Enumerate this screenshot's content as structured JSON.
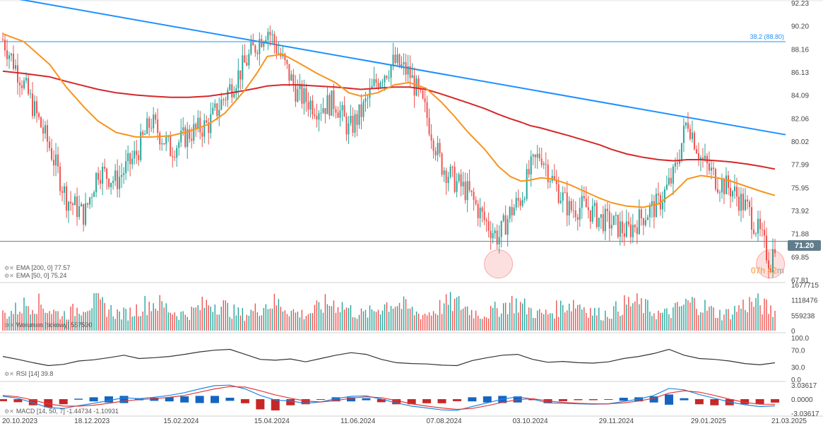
{
  "chart_data": {
    "type": "candlestick",
    "date_axis": [
      "20.10.2023",
      "18.12.2023",
      "15.02.2024",
      "15.04.2024",
      "11.06.2024",
      "07.08.2024",
      "03.10.2024",
      "29.11.2024",
      "29.01.2025",
      "21.03.2025"
    ],
    "price_axis": [
      "92.23",
      "90.20",
      "88.16",
      "86.13",
      "84.09",
      "82.06",
      "80.02",
      "77.99",
      "75.95",
      "73.92",
      "71.88",
      "69.85",
      "67.81"
    ],
    "ylim": [
      67.81,
      92.23
    ],
    "last_price": "71.20",
    "fib_level_label": "38.2 (88.80)",
    "fib_level_value": 88.8,
    "countdown": {
      "hours": "07",
      "h_unit": "h",
      "minutes": "42",
      "m_unit": "m"
    },
    "series": [
      {
        "name": "Close",
        "points": [
          [
            "20.10.2023",
            89.0
          ],
          [
            "03.11.2023",
            85.0
          ],
          [
            "20.11.2023",
            79.5
          ],
          [
            "01.12.2023",
            75.0
          ],
          [
            "13.12.2023",
            73.5
          ],
          [
            "22.12.2023",
            77.5
          ],
          [
            "03.01.2024",
            76.5
          ],
          [
            "16.01.2024",
            78.8
          ],
          [
            "26.01.2024",
            81.8
          ],
          [
            "08.02.2024",
            79.3
          ],
          [
            "20.02.2024",
            80.7
          ],
          [
            "04.03.2024",
            81.5
          ],
          [
            "15.03.2024",
            84.0
          ],
          [
            "28.03.2024",
            86.8
          ],
          [
            "05.04.2024",
            88.6
          ],
          [
            "12.04.2024",
            90.0
          ],
          [
            "22.04.2024",
            87.2
          ],
          [
            "02.05.2024",
            84.2
          ],
          [
            "15.05.2024",
            83.0
          ],
          [
            "27.05.2024",
            83.5
          ],
          [
            "05.06.2024",
            81.0
          ],
          [
            "13.06.2024",
            82.5
          ],
          [
            "24.06.2024",
            85.5
          ],
          [
            "05.07.2024",
            87.0
          ],
          [
            "15.07.2024",
            86.0
          ],
          [
            "26.07.2024",
            82.5
          ],
          [
            "05.08.2024",
            78.0
          ],
          [
            "14.08.2024",
            76.5
          ],
          [
            "23.08.2024",
            75.5
          ],
          [
            "03.09.2024",
            73.0
          ],
          [
            "12.09.2024",
            71.5
          ],
          [
            "20.09.2024",
            73.8
          ],
          [
            "27.09.2024",
            75.0
          ],
          [
            "03.10.2024",
            77.5
          ],
          [
            "10.10.2024",
            79.0
          ],
          [
            "18.10.2024",
            76.5
          ],
          [
            "29.10.2024",
            74.0
          ],
          [
            "08.11.2024",
            74.3
          ],
          [
            "18.11.2024",
            73.2
          ],
          [
            "26.11.2024",
            72.8
          ],
          [
            "06.12.2024",
            72.0
          ],
          [
            "17.12.2024",
            73.5
          ],
          [
            "27.12.2024",
            74.5
          ],
          [
            "06.01.2025",
            77.0
          ],
          [
            "15.01.2025",
            82.0
          ],
          [
            "24.01.2025",
            78.5
          ],
          [
            "04.02.2025",
            76.5
          ],
          [
            "13.02.2025",
            75.8
          ],
          [
            "24.02.2025",
            74.0
          ],
          [
            "05.03.2025",
            71.5
          ],
          [
            "11.03.2025",
            69.2
          ],
          [
            "14.03.2025",
            71.2
          ]
        ]
      },
      {
        "name": "EMA [200, 0]",
        "legend": "EMA [200, 0] 77.57",
        "color": "#d62728",
        "points": [
          [
            "20.10.2023",
            86.2
          ],
          [
            "03.11.2023",
            86.0
          ],
          [
            "20.11.2023",
            85.7
          ],
          [
            "01.12.2023",
            85.3
          ],
          [
            "13.12.2023",
            84.9
          ],
          [
            "22.12.2023",
            84.6
          ],
          [
            "03.01.2024",
            84.3
          ],
          [
            "16.01.2024",
            84.1
          ],
          [
            "26.01.2024",
            84.0
          ],
          [
            "08.02.2024",
            83.9
          ],
          [
            "20.02.2024",
            83.9
          ],
          [
            "04.03.2024",
            84.0
          ],
          [
            "15.03.2024",
            84.2
          ],
          [
            "28.03.2024",
            84.5
          ],
          [
            "05.04.2024",
            84.7
          ],
          [
            "12.04.2024",
            84.9
          ],
          [
            "22.04.2024",
            85.0
          ],
          [
            "02.05.2024",
            85.0
          ],
          [
            "15.05.2024",
            84.9
          ],
          [
            "27.05.2024",
            84.8
          ],
          [
            "05.06.2024",
            84.7
          ],
          [
            "13.06.2024",
            84.6
          ],
          [
            "24.06.2024",
            84.7
          ],
          [
            "05.07.2024",
            84.8
          ],
          [
            "15.07.2024",
            84.8
          ],
          [
            "26.07.2024",
            84.6
          ],
          [
            "05.08.2024",
            84.2
          ],
          [
            "14.08.2024",
            83.8
          ],
          [
            "23.08.2024",
            83.4
          ],
          [
            "03.09.2024",
            82.9
          ],
          [
            "12.09.2024",
            82.4
          ],
          [
            "20.09.2024",
            82.0
          ],
          [
            "27.09.2024",
            81.7
          ],
          [
            "03.10.2024",
            81.4
          ],
          [
            "10.10.2024",
            81.2
          ],
          [
            "18.10.2024",
            80.9
          ],
          [
            "29.10.2024",
            80.5
          ],
          [
            "08.11.2024",
            80.1
          ],
          [
            "18.11.2024",
            79.7
          ],
          [
            "26.11.2024",
            79.3
          ],
          [
            "06.12.2024",
            78.9
          ],
          [
            "17.12.2024",
            78.6
          ],
          [
            "27.12.2024",
            78.4
          ],
          [
            "06.01.2025",
            78.3
          ],
          [
            "15.01.2025",
            78.4
          ],
          [
            "24.01.2025",
            78.4
          ],
          [
            "04.02.2025",
            78.3
          ],
          [
            "13.02.2025",
            78.2
          ],
          [
            "24.02.2025",
            78.0
          ],
          [
            "05.03.2025",
            77.8
          ],
          [
            "14.03.2025",
            77.57
          ]
        ]
      },
      {
        "name": "EMA [50, 0]",
        "legend": "EMA [50, 0] 75.24",
        "color": "#f7941d",
        "points": [
          [
            "20.10.2023",
            89.5
          ],
          [
            "03.11.2023",
            88.8
          ],
          [
            "20.11.2023",
            86.8
          ],
          [
            "01.12.2023",
            84.8
          ],
          [
            "13.12.2023",
            83.0
          ],
          [
            "22.12.2023",
            81.8
          ],
          [
            "03.01.2024",
            80.8
          ],
          [
            "16.01.2024",
            80.4
          ],
          [
            "26.01.2024",
            80.4
          ],
          [
            "08.02.2024",
            80.5
          ],
          [
            "20.02.2024",
            80.9
          ],
          [
            "04.03.2024",
            81.5
          ],
          [
            "15.03.2024",
            82.5
          ],
          [
            "28.03.2024",
            84.5
          ],
          [
            "05.04.2024",
            86.0
          ],
          [
            "12.04.2024",
            87.5
          ],
          [
            "22.04.2024",
            87.7
          ],
          [
            "02.05.2024",
            87.0
          ],
          [
            "15.05.2024",
            86.0
          ],
          [
            "27.05.2024",
            85.2
          ],
          [
            "05.06.2024",
            84.3
          ],
          [
            "13.06.2024",
            84.0
          ],
          [
            "24.06.2024",
            84.3
          ],
          [
            "05.07.2024",
            85.0
          ],
          [
            "15.07.2024",
            85.2
          ],
          [
            "26.07.2024",
            84.7
          ],
          [
            "05.08.2024",
            83.5
          ],
          [
            "14.08.2024",
            82.2
          ],
          [
            "23.08.2024",
            80.8
          ],
          [
            "03.09.2024",
            79.3
          ],
          [
            "12.09.2024",
            77.8
          ],
          [
            "20.09.2024",
            76.9
          ],
          [
            "27.09.2024",
            76.5
          ],
          [
            "03.10.2024",
            76.6
          ],
          [
            "10.10.2024",
            76.8
          ],
          [
            "18.10.2024",
            76.7
          ],
          [
            "29.10.2024",
            76.2
          ],
          [
            "08.11.2024",
            75.6
          ],
          [
            "18.11.2024",
            75.0
          ],
          [
            "26.11.2024",
            74.6
          ],
          [
            "06.12.2024",
            74.3
          ],
          [
            "17.12.2024",
            74.2
          ],
          [
            "27.12.2024",
            74.5
          ],
          [
            "06.01.2025",
            75.5
          ],
          [
            "15.01.2025",
            76.7
          ],
          [
            "24.01.2025",
            77.0
          ],
          [
            "04.02.2025",
            76.8
          ],
          [
            "13.02.2025",
            76.5
          ],
          [
            "24.02.2025",
            76.0
          ],
          [
            "05.03.2025",
            75.6
          ],
          [
            "14.03.2025",
            75.24
          ]
        ]
      }
    ],
    "trendline": {
      "from": [
        "20.10.2023",
        92.8
      ],
      "to": [
        "21.03.2025",
        80.6
      ],
      "color": "#1e90ff"
    },
    "highlight_circles": [
      {
        "date": "12.09.2024",
        "value": 69.2
      },
      {
        "date": "11.03.2025",
        "value": 69.2
      }
    ],
    "volume": {
      "legend": "Wolumen  [tickowy]  557590",
      "axis": [
        "1677715",
        "1118476",
        "559238",
        "0"
      ],
      "ylim": [
        0,
        1677715
      ]
    },
    "rsi": {
      "legend": "RSI [14] 39.8",
      "axis": [
        "100.0",
        "70.0",
        "30.0",
        "0.0"
      ],
      "ylim": [
        0,
        100
      ],
      "values": [
        55,
        48,
        40,
        33,
        36,
        44,
        47,
        52,
        58,
        50,
        52,
        55,
        60,
        66,
        70,
        72,
        60,
        48,
        46,
        49,
        42,
        50,
        58,
        64,
        60,
        48,
        40,
        38,
        37,
        34,
        33,
        45,
        52,
        58,
        60,
        48,
        41,
        43,
        40,
        39,
        42,
        50,
        55,
        62,
        72,
        58,
        50,
        48,
        44,
        38,
        35,
        39.8
      ]
    },
    "macd": {
      "legend": "MACD [14, 50, 7]  -1.44734  -1.10931",
      "axis": [
        "3.03617",
        "0.0000",
        "-3.03617"
      ],
      "ylim": [
        -3.03617,
        3.03617
      ],
      "macd": [
        0.6,
        0.2,
        -0.8,
        -1.8,
        -2.0,
        -1.4,
        -0.9,
        -0.3,
        0.3,
        0.1,
        0.4,
        0.8,
        1.4,
        2.2,
        2.9,
        3.0,
        2.2,
        0.8,
        -0.2,
        -0.4,
        -0.9,
        -0.6,
        0.1,
        0.6,
        0.7,
        0.0,
        -0.8,
        -1.5,
        -1.9,
        -2.3,
        -2.4,
        -1.6,
        -0.8,
        0.0,
        0.5,
        0.0,
        -0.8,
        -0.9,
        -1.0,
        -1.1,
        -1.0,
        -0.5,
        0.0,
        0.8,
        2.3,
        2.0,
        1.0,
        0.2,
        -0.6,
        -1.2,
        -1.6,
        -1.44734
      ],
      "signal": [
        0.8,
        0.5,
        -0.2,
        -1.0,
        -1.5,
        -1.5,
        -1.3,
        -0.9,
        -0.4,
        -0.1,
        0.1,
        0.4,
        0.8,
        1.5,
        2.2,
        2.7,
        2.6,
        1.8,
        0.9,
        0.2,
        -0.4,
        -0.6,
        -0.3,
        0.2,
        0.5,
        0.3,
        -0.3,
        -1.0,
        -1.5,
        -1.9,
        -2.2,
        -2.0,
        -1.4,
        -0.7,
        -0.1,
        0.1,
        -0.4,
        -0.7,
        -0.9,
        -1.0,
        -1.0,
        -0.8,
        -0.4,
        0.2,
        1.3,
        1.8,
        1.5,
        0.8,
        0.0,
        -0.7,
        -1.1,
        -1.10931
      ]
    }
  }
}
